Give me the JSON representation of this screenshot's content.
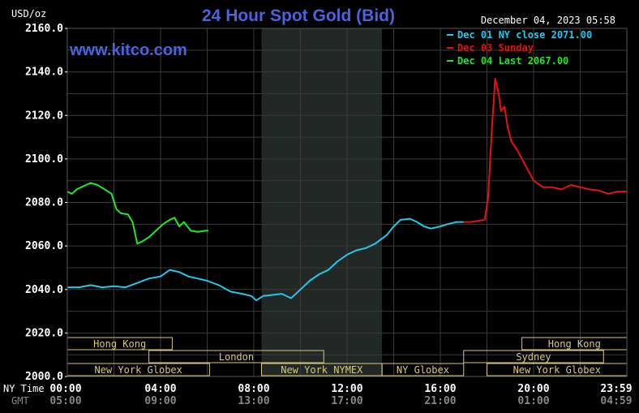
{
  "header": {
    "title": "24 Hour Spot Gold (Bid)",
    "unit": "USD/oz",
    "timestamp": "December 04, 2023 05:58",
    "website": "www.kitco.com"
  },
  "legend": [
    {
      "label": "Dec 01 NY close 2071.00",
      "color": "#22c8f0"
    },
    {
      "label": "Dec 03 Sunday",
      "color": "#e81010"
    },
    {
      "label": "Dec 04 Last 2067.00",
      "color": "#22e822"
    }
  ],
  "colors": {
    "background": "#000000",
    "grid": "#3a3a3a",
    "axis_text": "#ffffff",
    "session_box": "#d8c87a",
    "shade": "#222826"
  },
  "chart_data": {
    "type": "line",
    "title": "24 Hour Spot Gold (Bid)",
    "ylabel": "USD/oz",
    "ylim": [
      2000,
      2160
    ],
    "yticks": [
      "2160.0",
      "2140.0",
      "2120.0",
      "2100.0",
      "2080.0",
      "2060.0",
      "2040.0",
      "2020.0",
      "2000.0"
    ],
    "xlim": [
      0,
      24
    ],
    "xrow_labels": {
      "ny": "NY Time",
      "gmt": "GMT"
    },
    "xticks_ny": [
      "00:00",
      "04:00",
      "08:00",
      "12:00",
      "16:00",
      "20:00",
      "23:59"
    ],
    "xticks_gmt": [
      "05:00",
      "09:00",
      "13:00",
      "17:00",
      "21:00",
      "01:00",
      "04:59"
    ],
    "grid": true,
    "legend_position": "top-right",
    "shaded_hours": [
      8.33,
      13.5
    ],
    "sessions": [
      {
        "label": "Hong Kong",
        "start": 0,
        "end": 4.5,
        "row": 0
      },
      {
        "label": "London",
        "start": 3.5,
        "end": 11.0,
        "row": 1
      },
      {
        "label": "New York Globex",
        "start": 0,
        "end": 6.1,
        "row": 2
      },
      {
        "label": "New York NYMEX",
        "start": 8.33,
        "end": 13.5,
        "row": 2
      },
      {
        "label": "NY Globex",
        "start": 13.5,
        "end": 17.0,
        "row": 2
      },
      {
        "label": "Hong Kong",
        "start": 19.5,
        "end": 24.0,
        "row": 0
      },
      {
        "label": "Sydney",
        "start": 17.0,
        "end": 23.0,
        "row": 1
      },
      {
        "label": "New York Globex",
        "start": 18.0,
        "end": 24.0,
        "row": 2
      }
    ],
    "series": [
      {
        "name": "Dec 01 NY close 2071.00",
        "color": "#22c8f0",
        "x": [
          0,
          0.5,
          1,
          1.5,
          2,
          2.5,
          3,
          3.5,
          4,
          4.4,
          4.8,
          5.2,
          5.6,
          6,
          6.5,
          7,
          7.5,
          7.9,
          8.1,
          8.4,
          8.8,
          9.2,
          9.6,
          10,
          10.4,
          10.8,
          11.2,
          11.6,
          12,
          12.4,
          12.8,
          13.2,
          13.7,
          14,
          14.3,
          14.7,
          15,
          15.3,
          15.6,
          16,
          16.3,
          16.7,
          17
        ],
        "y": [
          2041,
          2041,
          2042,
          2041,
          2041.5,
          2041,
          2043,
          2045,
          2046,
          2049,
          2048,
          2046,
          2045,
          2044,
          2042,
          2039,
          2038,
          2037,
          2035,
          2037,
          2037.5,
          2038,
          2036,
          2040,
          2044,
          2047,
          2049,
          2053,
          2056,
          2058,
          2059,
          2061,
          2065,
          2069,
          2072,
          2072.5,
          2071,
          2069,
          2068,
          2069,
          2070,
          2071,
          2071
        ]
      },
      {
        "name": "Dec 03 Sunday",
        "color": "#e81010",
        "x": [
          17,
          17.3,
          17.6,
          17.9,
          18.05,
          18.2,
          18.35,
          18.5,
          18.6,
          18.75,
          18.9,
          19.05,
          19.3,
          19.6,
          20,
          20.4,
          20.8,
          21.2,
          21.6,
          22,
          22.4,
          22.8,
          23.2,
          23.6,
          23.99
        ],
        "y": [
          2071,
          2071,
          2071.5,
          2072,
          2082,
          2112,
          2137,
          2130,
          2122,
          2124,
          2114,
          2108,
          2104,
          2098,
          2090,
          2087,
          2087,
          2086,
          2088,
          2087,
          2086,
          2085.5,
          2084,
          2085,
          2085
        ]
      },
      {
        "name": "Dec 04 Last 2067.00",
        "color": "#22e822",
        "x": [
          0,
          0.2,
          0.4,
          0.6,
          0.8,
          1,
          1.3,
          1.6,
          1.9,
          2.1,
          2.3,
          2.6,
          2.8,
          3.0,
          3.2,
          3.5,
          3.8,
          4.1,
          4.4,
          4.6,
          4.8,
          5.0,
          5.3,
          5.6,
          5.9,
          6.05
        ],
        "y": [
          2085,
          2084,
          2086,
          2087,
          2088,
          2089,
          2088,
          2086,
          2084,
          2077,
          2075,
          2074.5,
          2071,
          2061,
          2062,
          2064,
          2067,
          2070,
          2072,
          2073,
          2069,
          2071,
          2067,
          2066.5,
          2067,
          2067
        ]
      }
    ]
  }
}
